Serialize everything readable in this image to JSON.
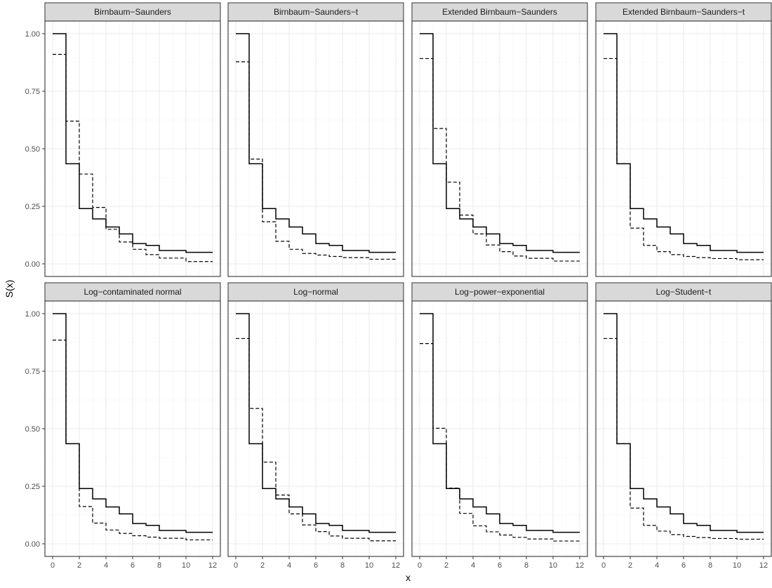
{
  "chart_data": {
    "type": "line",
    "layout": "facet grid, 2 rows x 4 columns, shared axes",
    "xlabel": "x",
    "ylabel": "S(x)",
    "xlim": [
      0,
      12
    ],
    "ylim": [
      0,
      1
    ],
    "x_ticks": [
      0,
      2,
      4,
      6,
      8,
      10,
      12
    ],
    "y_ticks": [
      "0.00",
      "0.25",
      "0.50",
      "0.75",
      "1.00"
    ],
    "grid": true,
    "legend": "none",
    "step_x": [
      0,
      1,
      2,
      3,
      4,
      5,
      6,
      7,
      8,
      9,
      10,
      11,
      12
    ],
    "empirical": [
      1.0,
      0.435,
      0.24,
      0.195,
      0.16,
      0.13,
      0.088,
      0.08,
      0.058,
      0.058,
      0.05,
      0.05,
      0.05
    ],
    "panels": [
      {
        "title": "Birnbaum−Saunders",
        "fitted": [
          0.91,
          0.62,
          0.39,
          0.245,
          0.15,
          0.095,
          0.063,
          0.04,
          0.025,
          0.025,
          0.01,
          0.01,
          0.01
        ]
      },
      {
        "title": "Birnbaum−Saunders−t",
        "fitted": [
          0.878,
          0.455,
          0.183,
          0.098,
          0.063,
          0.045,
          0.038,
          0.032,
          0.027,
          0.027,
          0.02,
          0.02,
          0.02
        ]
      },
      {
        "title": "Extended Birnbaum−Saunders",
        "fitted": [
          0.892,
          0.588,
          0.355,
          0.212,
          0.13,
          0.082,
          0.053,
          0.034,
          0.024,
          0.024,
          0.012,
          0.012,
          0.012
        ]
      },
      {
        "title": "Extended Birnbaum−Saunders−t",
        "fitted": [
          0.892,
          0.435,
          0.155,
          0.08,
          0.053,
          0.04,
          0.032,
          0.027,
          0.023,
          0.023,
          0.018,
          0.018,
          0.018
        ]
      },
      {
        "title": "Log−contaminated normal",
        "fitted": [
          0.885,
          0.435,
          0.162,
          0.09,
          0.06,
          0.045,
          0.035,
          0.029,
          0.024,
          0.024,
          0.017,
          0.017,
          0.017
        ]
      },
      {
        "title": "Log−normal",
        "fitted": [
          0.892,
          0.588,
          0.355,
          0.212,
          0.13,
          0.082,
          0.053,
          0.034,
          0.024,
          0.024,
          0.013,
          0.013,
          0.013
        ]
      },
      {
        "title": "Log−power−exponential",
        "fitted": [
          0.87,
          0.502,
          0.242,
          0.132,
          0.078,
          0.052,
          0.038,
          0.028,
          0.021,
          0.021,
          0.012,
          0.012,
          0.012
        ]
      },
      {
        "title": "Log−Student−t",
        "fitted": [
          0.892,
          0.435,
          0.155,
          0.08,
          0.055,
          0.04,
          0.032,
          0.027,
          0.023,
          0.023,
          0.02,
          0.02,
          0.02
        ]
      }
    ],
    "series": [
      {
        "style": "solid"
      },
      {
        "style": "dashed"
      }
    ]
  }
}
